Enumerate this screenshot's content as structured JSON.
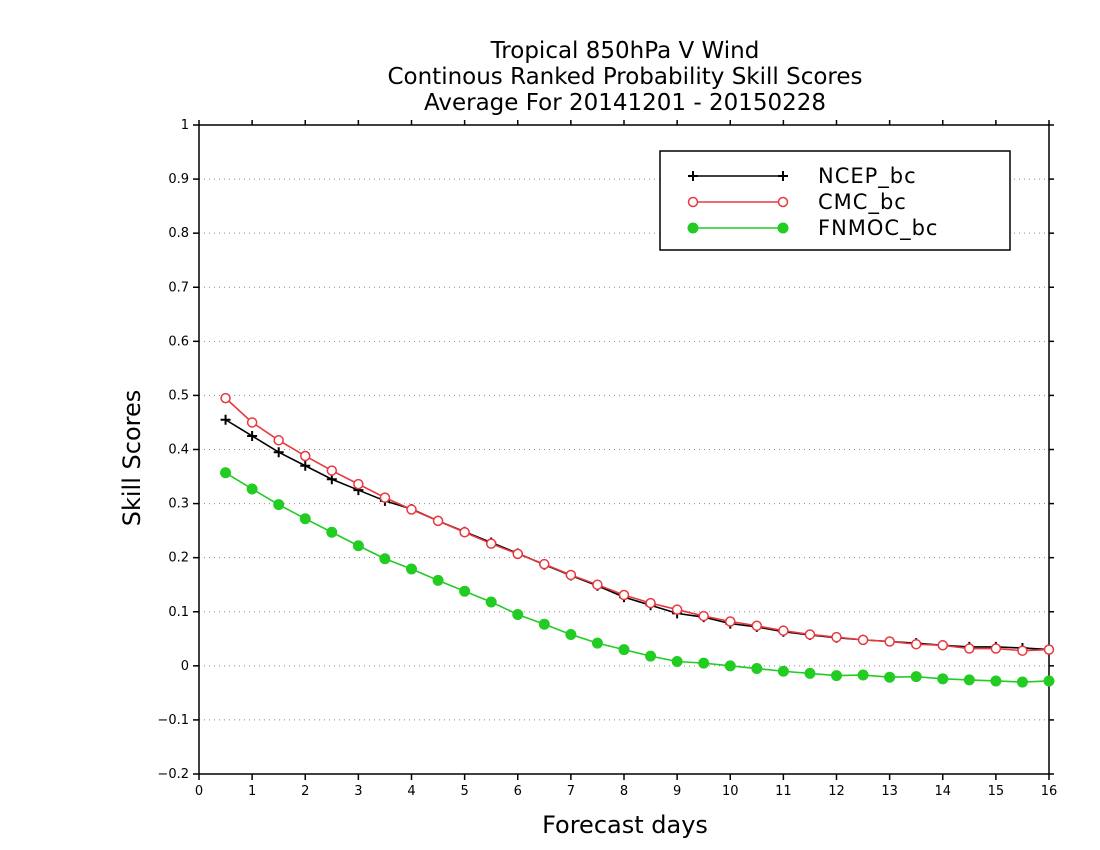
{
  "chart_data": {
    "type": "line",
    "title_lines": [
      "Tropical 850hPa V Wind",
      "Continous Ranked Probability Skill Scores",
      "Average For 20141201 - 20150228"
    ],
    "xlabel": "Forecast days",
    "ylabel": "Skill Scores",
    "xlim": [
      0,
      16
    ],
    "ylim": [
      -0.2,
      1
    ],
    "xticks": [
      "0",
      "1",
      "2",
      "3",
      "4",
      "5",
      "6",
      "7",
      "8",
      "9",
      "10",
      "11",
      "12",
      "13",
      "14",
      "15",
      "16"
    ],
    "yticks": [
      "−0.2",
      "−0.1",
      "0",
      "0.1",
      "0.2",
      "0.3",
      "0.4",
      "0.5",
      "0.6",
      "0.7",
      "0.8",
      "0.9",
      "1"
    ],
    "grid": true,
    "legend_position": "top-right",
    "x": [
      0.5,
      1,
      1.5,
      2,
      2.5,
      3,
      3.5,
      4,
      4.5,
      5,
      5.5,
      6,
      6.5,
      7,
      7.5,
      8,
      8.5,
      9,
      9.5,
      10,
      10.5,
      11,
      11.5,
      12,
      12.5,
      13,
      13.5,
      14,
      14.5,
      15,
      15.5,
      16
    ],
    "series": [
      {
        "name": "NCEP_bc",
        "color": "#000000",
        "marker": "plus",
        "values": [
          0.455,
          0.425,
          0.395,
          0.37,
          0.345,
          0.325,
          0.305,
          0.29,
          0.268,
          0.248,
          0.228,
          0.208,
          0.187,
          0.167,
          0.148,
          0.127,
          0.112,
          0.097,
          0.09,
          0.078,
          0.072,
          0.063,
          0.057,
          0.052,
          0.048,
          0.045,
          0.042,
          0.038,
          0.035,
          0.035,
          0.033,
          0.03
        ]
      },
      {
        "name": "CMC_bc",
        "color": "#e8383d",
        "marker": "open-circle",
        "values": [
          0.495,
          0.45,
          0.417,
          0.388,
          0.361,
          0.336,
          0.311,
          0.289,
          0.268,
          0.247,
          0.226,
          0.207,
          0.188,
          0.168,
          0.15,
          0.131,
          0.116,
          0.104,
          0.092,
          0.082,
          0.074,
          0.065,
          0.058,
          0.053,
          0.048,
          0.045,
          0.04,
          0.038,
          0.032,
          0.032,
          0.028,
          0.03
        ]
      },
      {
        "name": "FNMOC_bc",
        "color": "#22cc22",
        "marker": "filled-circle",
        "values": [
          0.357,
          0.327,
          0.298,
          0.272,
          0.247,
          0.222,
          0.198,
          0.179,
          0.158,
          0.138,
          0.118,
          0.095,
          0.077,
          0.058,
          0.042,
          0.03,
          0.018,
          0.008,
          0.005,
          0.0,
          -0.005,
          -0.01,
          -0.014,
          -0.018,
          -0.017,
          -0.021,
          -0.02,
          -0.024,
          -0.026,
          -0.028,
          -0.03,
          -0.028
        ]
      }
    ]
  }
}
